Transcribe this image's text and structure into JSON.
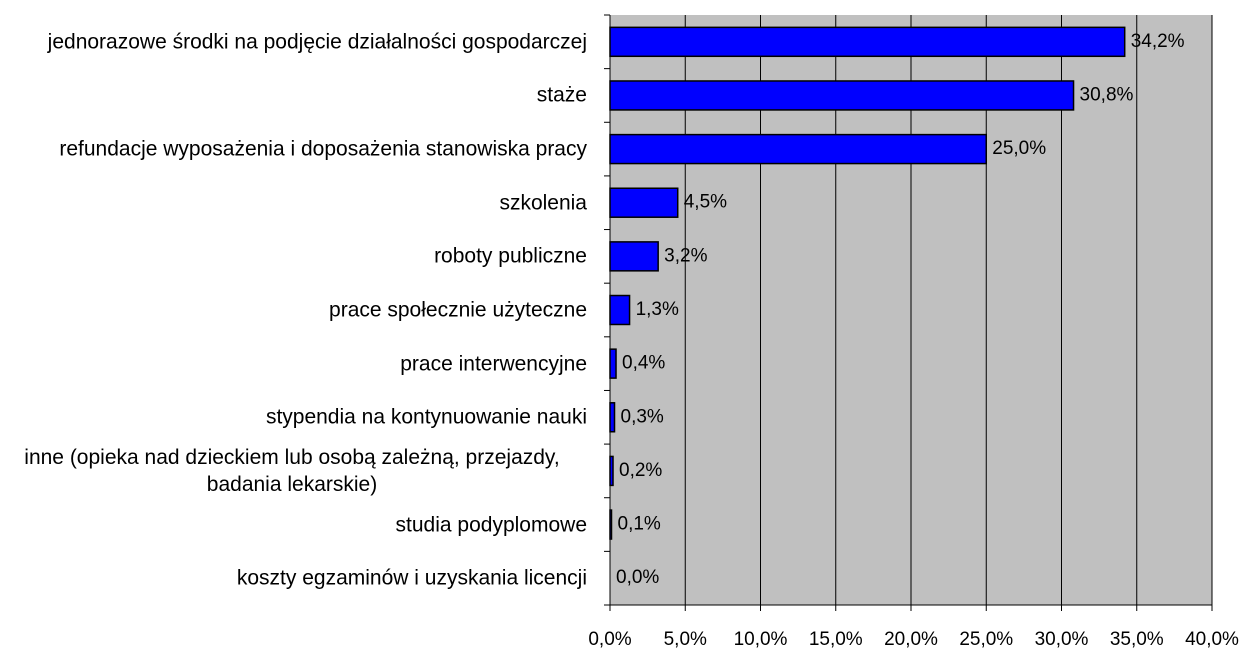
{
  "chart_data": {
    "type": "bar",
    "orientation": "horizontal",
    "categories": [
      "jednorazowe środki na podjęcie  działalności gospodarczej",
      "staże",
      "refundacje wyposażenia i doposażenia stanowiska pracy",
      "szkolenia",
      "roboty publiczne",
      "prace społecznie użyteczne",
      "prace interwencyjne",
      "stypendia na kontynuowanie nauki",
      "inne (opieka nad dzieckiem lub osobą zależną, przejazdy, badania lekarskie)",
      "studia podyplomowe",
      "koszty egzaminów i uzyskania licencji"
    ],
    "values": [
      34.2,
      30.8,
      25.0,
      4.5,
      3.2,
      1.3,
      0.4,
      0.3,
      0.2,
      0.1,
      0.0
    ],
    "value_labels": [
      "34,2%",
      "30,8%",
      "25,0%",
      "4,5%",
      "3,2%",
      "1,3%",
      "0,4%",
      "0,3%",
      "0,2%",
      "0,1%",
      "0,0%"
    ],
    "color": "#0000ff",
    "xlim": [
      0,
      40
    ],
    "xticks": [
      {
        "value": 0,
        "label": "0,0%"
      },
      {
        "value": 5,
        "label": "5,0%"
      },
      {
        "value": 10,
        "label": "10,0%"
      },
      {
        "value": 15,
        "label": "15,0%"
      },
      {
        "value": 20,
        "label": "20,0%"
      },
      {
        "value": 25,
        "label": "25,0%"
      },
      {
        "value": 30,
        "label": "30,0%"
      },
      {
        "value": 35,
        "label": "35,0%"
      },
      {
        "value": 40,
        "label": "40,0%"
      }
    ],
    "grid": true
  }
}
